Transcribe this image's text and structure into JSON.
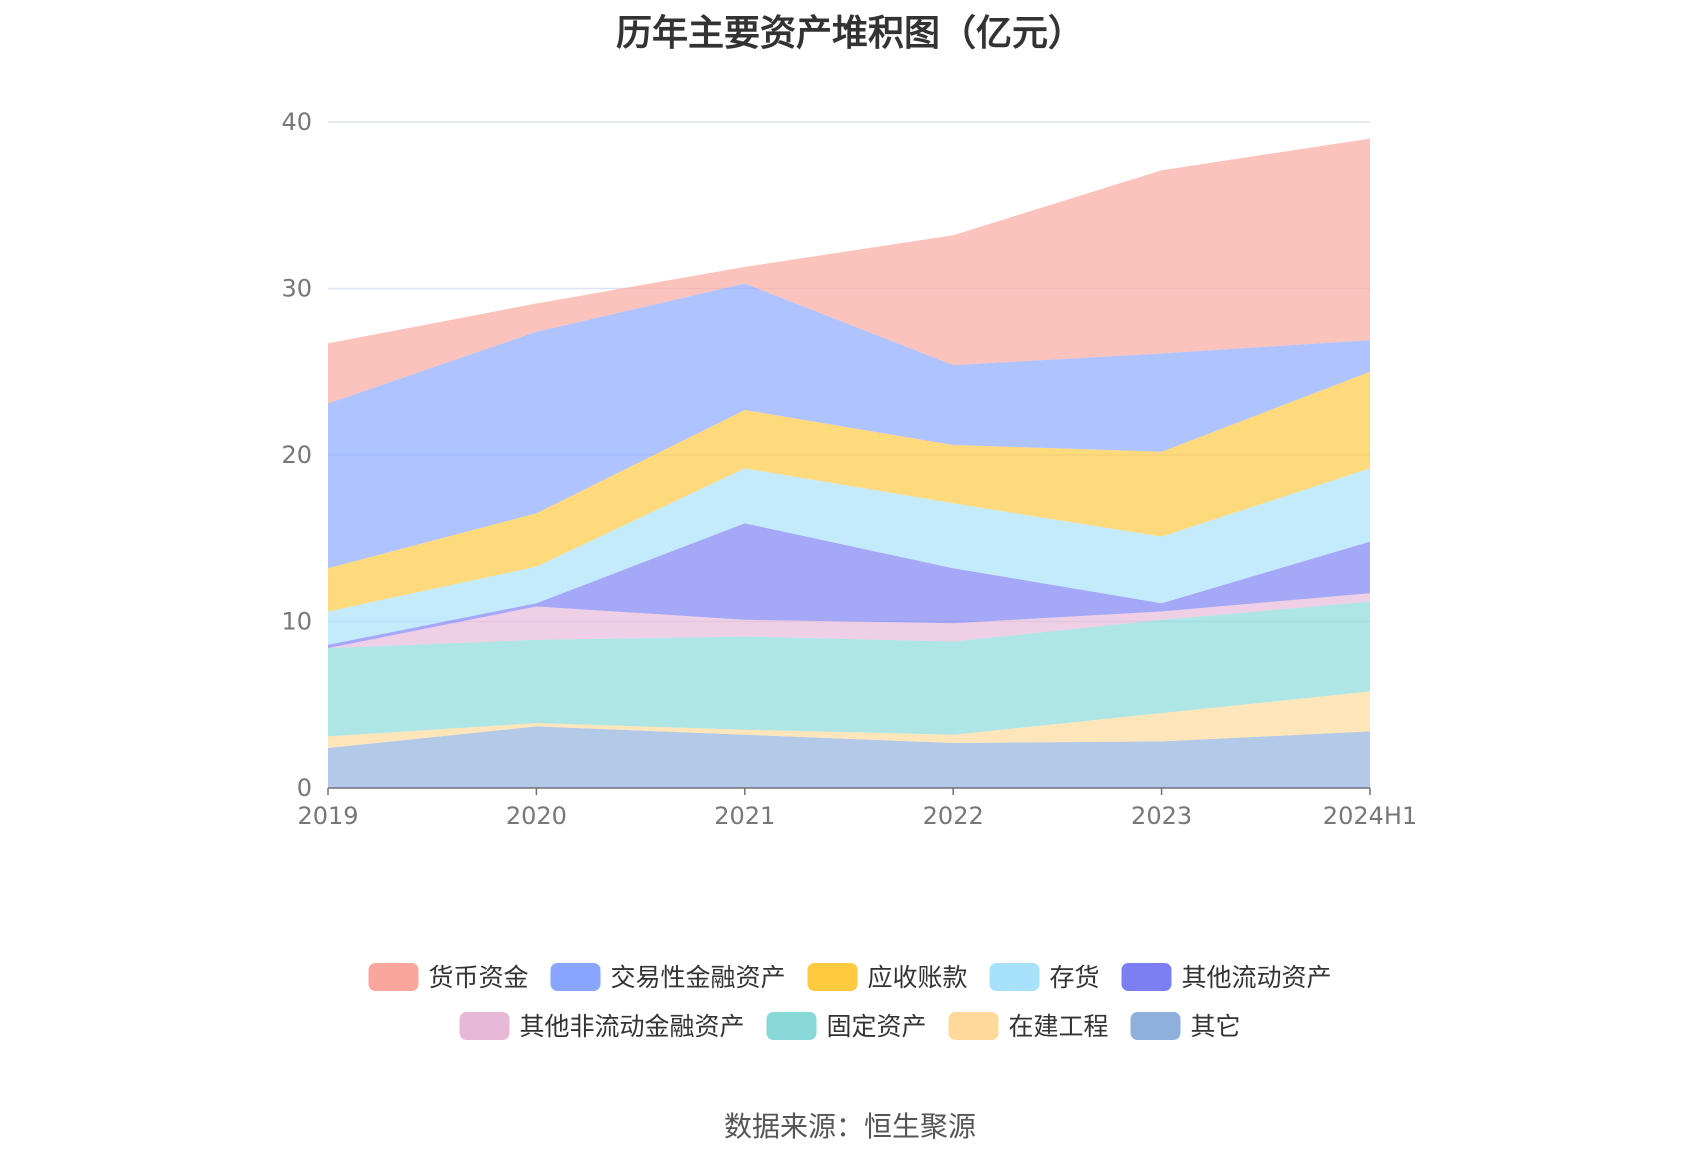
{
  "title": "历年主要资产堆积图（亿元）",
  "source": "数据来源：恒生聚源",
  "chart_data": {
    "type": "area",
    "stacked": true,
    "categories": [
      "2019",
      "2020",
      "2021",
      "2022",
      "2023",
      "2024H1"
    ],
    "ylim": [
      0,
      40
    ],
    "yticks": [
      0,
      10,
      20,
      30,
      40
    ],
    "grid": true,
    "legend_position": "bottom",
    "series": [
      {
        "name": "其它",
        "color": "#8fb0dd",
        "values": [
          2.4,
          3.7,
          3.2,
          2.7,
          2.8,
          3.4
        ]
      },
      {
        "name": "在建工程",
        "color": "#ffd999",
        "values": [
          0.7,
          0.2,
          0.3,
          0.5,
          1.7,
          2.4
        ]
      },
      {
        "name": "固定资产",
        "color": "#88d8d8",
        "values": [
          5.3,
          5.0,
          5.6,
          5.6,
          5.6,
          5.4
        ]
      },
      {
        "name": "其他非流动金融资产",
        "color": "#e8b8d8",
        "values": [
          0.0,
          2.0,
          1.0,
          1.1,
          0.5,
          0.5
        ]
      },
      {
        "name": "其他流动资产",
        "color": "#7b7ff2",
        "values": [
          0.2,
          0.2,
          5.8,
          3.3,
          0.5,
          3.1
        ]
      },
      {
        "name": "存货",
        "color": "#a8e1fa",
        "values": [
          2.0,
          2.2,
          3.3,
          3.9,
          4.0,
          4.4
        ]
      },
      {
        "name": "应收账款",
        "color": "#ffc940",
        "values": [
          2.6,
          3.2,
          3.5,
          3.5,
          5.1,
          5.8
        ]
      },
      {
        "name": "交易性金融资产",
        "color": "#88a6ff",
        "values": [
          9.9,
          10.9,
          7.6,
          4.8,
          5.9,
          1.9
        ]
      },
      {
        "name": "货币资金",
        "color": "#fba69c",
        "values": [
          3.6,
          1.7,
          1.0,
          7.8,
          11.0,
          12.1
        ]
      }
    ],
    "legend_order": [
      "货币资金",
      "交易性金融资产",
      "应收账款",
      "存货",
      "其他流动资产",
      "其他非流动金融资产",
      "固定资产",
      "在建工程",
      "其它"
    ]
  }
}
